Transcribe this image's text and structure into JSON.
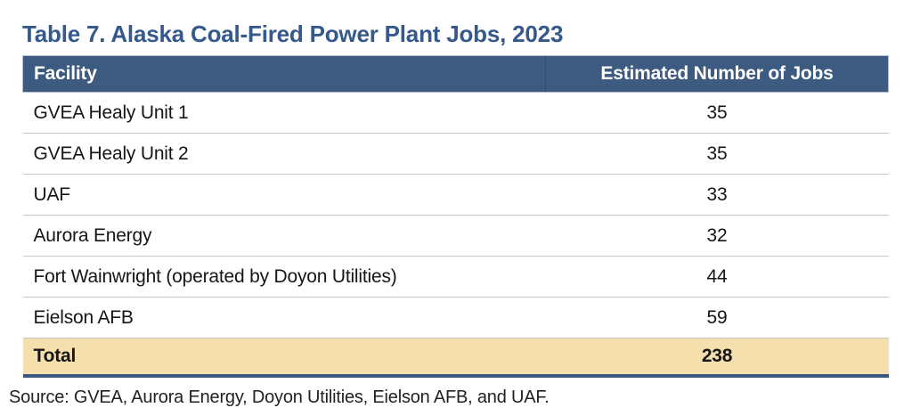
{
  "page": {
    "title": "Table 7. Alaska Coal-Fired Power Plant Jobs, 2023",
    "source": "Source: GVEA, Aurora Energy, Doyon Utilities, Eielson AFB, and UAF."
  },
  "table": {
    "columns": {
      "facility": "Facility",
      "jobs": "Estimated Number of Jobs"
    },
    "rows": [
      {
        "facility": "GVEA Healy Unit 1",
        "jobs": "35"
      },
      {
        "facility": "GVEA Healy Unit 2",
        "jobs": "35"
      },
      {
        "facility": "UAF",
        "jobs": "33"
      },
      {
        "facility": "Aurora Energy",
        "jobs": "32"
      },
      {
        "facility": "Fort Wainwright (operated by Doyon Utilities)",
        "jobs": "44"
      },
      {
        "facility": "Eielson AFB",
        "jobs": "59"
      }
    ],
    "total_row": {
      "label": "Total",
      "value": "238"
    }
  },
  "colors": {
    "title_text": "#34598a",
    "header_bg": "#3d5b80",
    "header_text": "#ffffff",
    "row_divider": "#c6c6c6",
    "total_bg": "#f5e0ad",
    "bottom_border": "#3a587e"
  }
}
